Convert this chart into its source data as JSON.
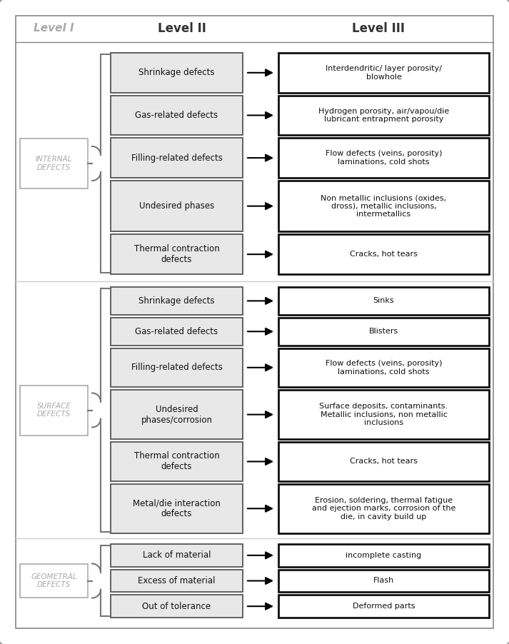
{
  "box_fill": "#e8e8e8",
  "box_edge": "#555555",
  "l3_fill": "#ffffff",
  "l3_edge": "#111111",
  "l1_fill": "#ffffff",
  "l1_edge": "#aaaaaa",
  "l1_text_color": "#aaaaaa",
  "header_color": "#333333",
  "header_l1_color": "#aaaaaa",
  "background": "#ffffff",
  "outer_border": "#999999",
  "inner_border": "#888888",
  "brace_color": "#777777",
  "separator_color": "#cccccc",
  "sections": [
    {
      "label": "INTERNAL\nDEFECTS",
      "rows": [
        {
          "l2": "Shrinkage defects",
          "l3": "Interdendritic/ layer porosity/\nblowhole",
          "l2_lines": 1,
          "l3_lines": 2
        },
        {
          "l2": "Gas-related defects",
          "l3": "Hydrogen porosity, air/vapou/die\nlubricant entrapment porosity",
          "l2_lines": 1,
          "l3_lines": 2
        },
        {
          "l2": "Filling-related defects",
          "l3": "Flow defects (veins, porosity)\nlaminations, cold shots",
          "l2_lines": 1,
          "l3_lines": 2
        },
        {
          "l2": "Undesired phases",
          "l3": "Non metallic inclusions (oxides,\ndross), metallic inclusions,\nintermetallics",
          "l2_lines": 1,
          "l3_lines": 3
        },
        {
          "l2": "Thermal contraction\ndefects",
          "l3": "Cracks, hot tears",
          "l2_lines": 2,
          "l3_lines": 1
        }
      ]
    },
    {
      "label": "SURFACE\nDEFECTS",
      "rows": [
        {
          "l2": "Shrinkage defects",
          "l3": "Sinks",
          "l2_lines": 1,
          "l3_lines": 1
        },
        {
          "l2": "Gas-related defects",
          "l3": "Blisters",
          "l2_lines": 1,
          "l3_lines": 1
        },
        {
          "l2": "Filling-related defects",
          "l3": "Flow defects (veins, porosity)\nlaminations, cold shots",
          "l2_lines": 1,
          "l3_lines": 2
        },
        {
          "l2": "Undesired\nphases/corrosion",
          "l3": "Surface deposits, contaminants.\nMetallic inclusions, non metallic\ninclusions",
          "l2_lines": 2,
          "l3_lines": 3
        },
        {
          "l2": "Thermal contraction\ndefects",
          "l3": "Cracks, hot tears",
          "l2_lines": 2,
          "l3_lines": 1
        },
        {
          "l2": "Metal/die interaction\ndefects",
          "l3": "Erosion, soldering, thermal fatigue\nand ejection marks, corrosion of the\ndie, in cavity build up",
          "l2_lines": 2,
          "l3_lines": 3
        }
      ]
    },
    {
      "label": "GEOMETRAL\nDEFECTS",
      "rows": [
        {
          "l2": "Lack of material",
          "l3": "incomplete casting",
          "l2_lines": 1,
          "l3_lines": 1
        },
        {
          "l2": "Excess of material",
          "l3": "Flash",
          "l2_lines": 1,
          "l3_lines": 1
        },
        {
          "l2": "Out of tolerance",
          "l3": "Deformed parts",
          "l2_lines": 1,
          "l3_lines": 1
        }
      ]
    }
  ]
}
